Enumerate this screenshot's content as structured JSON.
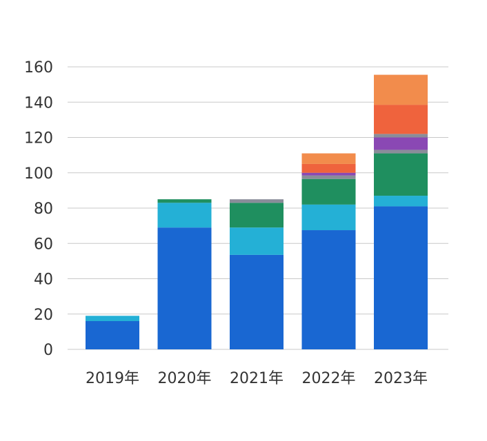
{
  "chart_data": {
    "type": "bar",
    "stacked": true,
    "title": "",
    "xlabel": "",
    "ylabel": "",
    "categories": [
      "2019年",
      "2020年",
      "2021年",
      "2022年",
      "2023年"
    ],
    "ylim": [
      0,
      160
    ],
    "yticks": [
      0,
      20,
      40,
      60,
      80,
      100,
      120,
      140,
      160
    ],
    "grid": true,
    "legend": "none",
    "series": [
      {
        "values": [
          16,
          69,
          53.5,
          67.5,
          81
        ],
        "color": "#1967d2"
      },
      {
        "values": [
          3,
          14,
          15.5,
          14.5,
          6
        ],
        "color": "#24b0d6"
      },
      {
        "values": [
          0,
          2,
          14,
          14.5,
          24
        ],
        "color": "#1f8f5f"
      },
      {
        "values": [
          0,
          0,
          2,
          2,
          2
        ],
        "color": "#8a8d99"
      },
      {
        "values": [
          0,
          0,
          0,
          1.5,
          7
        ],
        "color": "#8a48b4"
      },
      {
        "values": [
          0,
          0,
          0,
          0,
          2
        ],
        "color": "#8a8d99"
      },
      {
        "values": [
          0,
          0,
          0,
          5,
          16.5
        ],
        "color": "#ef633d"
      },
      {
        "values": [
          0,
          0,
          0,
          6,
          17
        ],
        "color": "#f28c4c"
      }
    ]
  }
}
